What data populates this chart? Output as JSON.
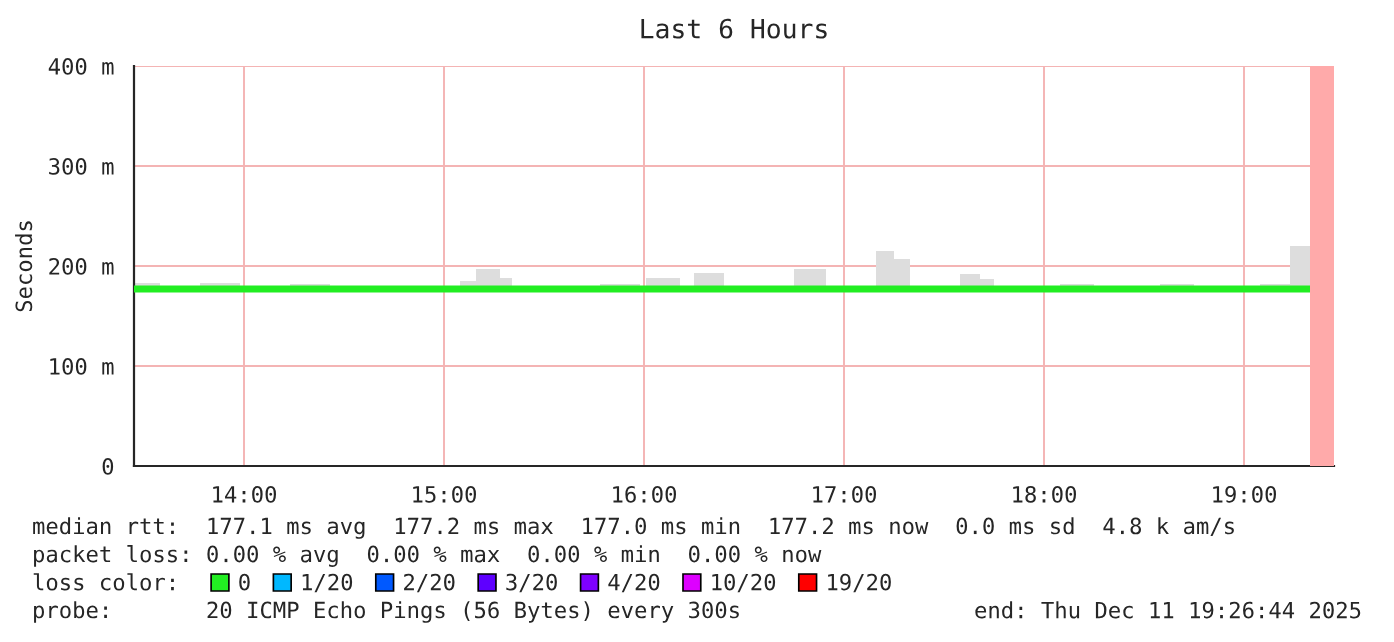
{
  "chart_data": {
    "type": "step",
    "title": "Last 6 Hours",
    "ylabel": "Seconds",
    "xlim": [
      13.45,
      19.45
    ],
    "xticks": [
      {
        "value": 14,
        "label": "14:00"
      },
      {
        "value": 15,
        "label": "15:00"
      },
      {
        "value": 16,
        "label": "16:00"
      },
      {
        "value": 17,
        "label": "17:00"
      },
      {
        "value": 18,
        "label": "18:00"
      },
      {
        "value": 19,
        "label": "19:00"
      }
    ],
    "ylim": [
      0,
      400
    ],
    "yticks": [
      0,
      {
        "value": 100,
        "label": "100 m"
      },
      {
        "value": 200,
        "label": "200 m"
      },
      {
        "value": 300,
        "label": "300 m"
      },
      {
        "value": 400,
        "label": "400 m"
      }
    ],
    "grid": true,
    "legend": "bottom",
    "legend_title": "loss color:",
    "series": [
      {
        "name": "0",
        "color": "#22ee22",
        "x": [
          13.45,
          13.58,
          13.78,
          13.98,
          14.23,
          14.43,
          15.08,
          15.16,
          15.28,
          15.34,
          15.78,
          15.98,
          16.01,
          16.18,
          16.25,
          16.4,
          16.75,
          16.91,
          17.16,
          17.25,
          17.33,
          17.58,
          17.68,
          17.75,
          18.08,
          18.25,
          18.58,
          18.75,
          19.08,
          19.23,
          19.33
        ],
        "values": [
          177,
          177,
          177,
          177,
          177,
          177,
          177,
          177,
          177,
          177,
          177,
          177,
          177,
          177,
          177,
          177,
          177,
          177,
          177,
          177,
          177,
          177,
          177,
          177,
          177,
          177,
          177,
          177,
          177,
          177,
          177
        ],
        "lower": [
          176,
          176,
          176,
          176,
          176,
          176,
          176,
          176,
          176,
          176,
          176,
          176,
          176,
          176,
          176,
          176,
          176,
          176,
          176,
          176,
          176,
          176,
          176,
          176,
          176,
          176,
          176,
          176,
          176,
          176,
          176
        ],
        "upper": [
          183,
          178,
          183,
          178,
          182,
          178,
          185,
          197,
          188,
          178,
          182,
          178,
          188,
          178,
          193,
          178,
          197,
          178,
          215,
          207,
          178,
          192,
          187,
          178,
          182,
          178,
          182,
          178,
          182,
          220,
          220
        ]
      },
      {
        "name": "1/20",
        "color": "#00b8ff"
      },
      {
        "name": "2/20",
        "color": "#0059ff"
      },
      {
        "name": "3/20",
        "color": "#5e00ff"
      },
      {
        "name": "4/20",
        "color": "#7e00ff"
      },
      {
        "name": "10/20",
        "color": "#dd00ff"
      },
      {
        "name": "19/20",
        "color": "#ff0000"
      }
    ],
    "bands": [
      {
        "axis": "x",
        "from": 19.33,
        "to": 19.45,
        "color": "#ffaaaa"
      }
    ],
    "annotations": [
      "median rtt:  177.1 ms avg  177.2 ms max  177.0 ms min  177.2 ms now  0.0 ms sd  4.8 k am/s",
      "packet loss: 0.00 % avg  0.00 % max  0.00 % min  0.00 % now",
      "probe:       20 ICMP Echo Pings (56 Bytes) every 300s",
      "end: Thu Dec 11 19:26:44 2025"
    ]
  }
}
